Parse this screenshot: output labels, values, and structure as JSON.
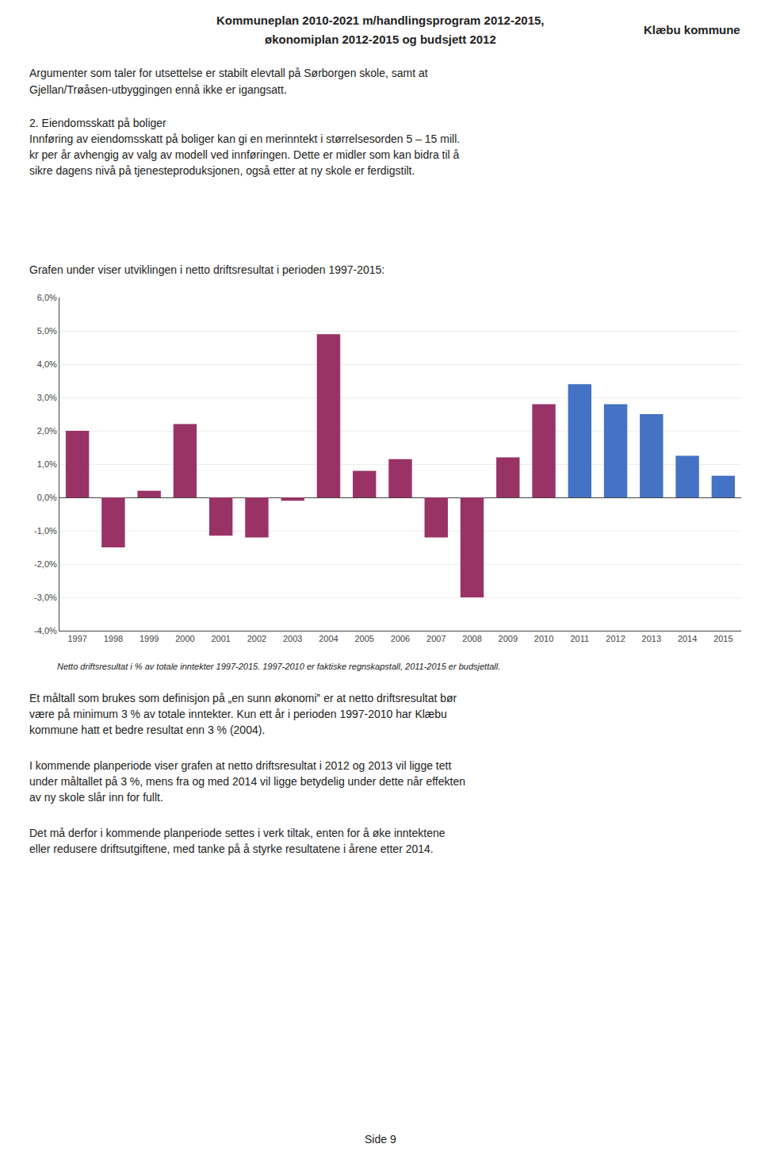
{
  "chart_data": {
    "type": "bar",
    "categories": [
      "1997",
      "1998",
      "1999",
      "2000",
      "2001",
      "2002",
      "2003",
      "2004",
      "2005",
      "2006",
      "2007",
      "2008",
      "2009",
      "2010",
      "2011",
      "2012",
      "2013",
      "2014",
      "2015"
    ],
    "values": [
      2.0,
      -1.5,
      0.2,
      2.2,
      -1.15,
      -1.2,
      -0.1,
      4.9,
      0.8,
      1.15,
      -1.2,
      -3.0,
      1.2,
      2.8,
      3.4,
      2.8,
      2.5,
      1.25,
      0.65
    ],
    "colors": [
      "#993366",
      "#993366",
      "#993366",
      "#993366",
      "#993366",
      "#993366",
      "#993366",
      "#993366",
      "#993366",
      "#993366",
      "#993366",
      "#993366",
      "#993366",
      "#993366",
      "#4472C4",
      "#4472C4",
      "#4472C4",
      "#4472C4",
      "#4472C4"
    ],
    "ylim": [
      -4.0,
      6.0
    ],
    "yticks": [
      {
        "value": -4.0,
        "label": "-4,0%"
      },
      {
        "value": -3.0,
        "label": "-3,0%"
      },
      {
        "value": -2.0,
        "label": "-2,0%"
      },
      {
        "value": -1.0,
        "label": "-1,0%"
      },
      {
        "value": 0.0,
        "label": "0,0%"
      },
      {
        "value": 1.0,
        "label": "1,0%"
      },
      {
        "value": 2.0,
        "label": "2,0%"
      },
      {
        "value": 3.0,
        "label": "3,0%"
      },
      {
        "value": 4.0,
        "label": "4,0%"
      },
      {
        "value": 5.0,
        "label": "5,0%"
      },
      {
        "value": 6.0,
        "label": "6,0%"
      }
    ],
    "grid": true,
    "annotations": [
      "Kommuneplan 2010-2021 m/handlingsprogram 2012-2015,",
      "økonomiplan 2012-2015 og budsjett 2012",
      "Klæbu kommune",
      "Argumenter som taler for utsettelse er stabilt elevtall på Sørborgen skole, samt at",
      "Gjellan/Trøåsen-utbyggingen ennå ikke er igangsatt.",
      "2. Eiendomsskatt på boliger",
      "Innføring av eiendomsskatt på boliger kan gi en merinntekt i størrelsesorden 5 – 15 mill.",
      "kr per år avhengig av valg av modell ved innføringen. Dette er midler som kan bidra til å",
      "sikre dagens nivå på tjenesteproduksjonen, også etter at ny skole er ferdigstilt.",
      "Grafen under viser utviklingen i netto driftsresultat i perioden 1997-2015:",
      "Netto driftsresultat i % av totale inntekter 1997-2015. 1997-2010 er faktiske regnskapstall, 2011-2015 er budsjettall.",
      "Et måltall som brukes som definisjon på „en sunn økonomi‟ er at netto driftsresultat bør",
      "være på minimum 3 % av totale inntekter. Kun ett år i perioden 1997-2010 har Klæbu",
      "kommune hatt et bedre resultat enn 3 % (2004).",
      "I kommende planperiode viser grafen at netto driftsresultat i 2012 og 2013 vil ligge tett",
      "under måltallet på 3 %, mens fra og med 2014 vil ligge betydelig under dette når effekten",
      "av ny skole slår inn for fullt.",
      "Det må derfor i kommende planperiode settes i verk tiltak, enten for å øke inntektene",
      "eller redusere driftsutgiftene, med tanke på å styrke resultatene i årene etter 2014.",
      "Side 9"
    ]
  }
}
